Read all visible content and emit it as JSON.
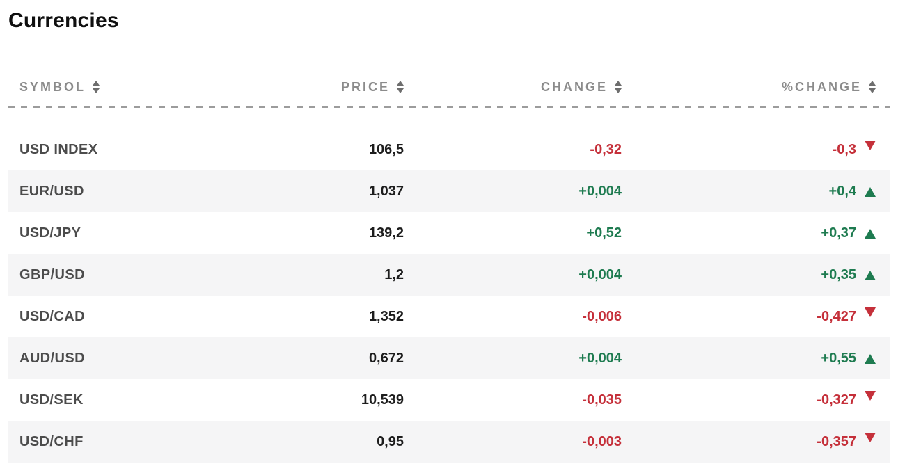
{
  "title": "Currencies",
  "colors": {
    "positive": "#1e7b50",
    "negative": "#c5303a",
    "header_text": "#8b8b8b",
    "symbol_text": "#4c4c4c",
    "price_text": "#1d1d1d",
    "row_alt_bg": "#f5f5f6",
    "dashed_divider": "#9c9c9c"
  },
  "table": {
    "columns": [
      {
        "label": "SYMBOL",
        "sort_icon": "sort-arrows"
      },
      {
        "label": "PRICE",
        "sort_icon": "sort-arrows"
      },
      {
        "label": "CHANGE",
        "sort_icon": "sort-arrows"
      },
      {
        "label": "%CHANGE",
        "sort_icon": "sort-arrows"
      }
    ],
    "rows": [
      {
        "symbol": "USD INDEX",
        "price": "106,5",
        "change": "-0,32",
        "pct_change": "-0,3",
        "direction": "down"
      },
      {
        "symbol": "EUR/USD",
        "price": "1,037",
        "change": "+0,004",
        "pct_change": "+0,4",
        "direction": "up"
      },
      {
        "symbol": "USD/JPY",
        "price": "139,2",
        "change": "+0,52",
        "pct_change": "+0,37",
        "direction": "up"
      },
      {
        "symbol": "GBP/USD",
        "price": "1,2",
        "change": "+0,004",
        "pct_change": "+0,35",
        "direction": "up"
      },
      {
        "symbol": "USD/CAD",
        "price": "1,352",
        "change": "-0,006",
        "pct_change": "-0,427",
        "direction": "down"
      },
      {
        "symbol": "AUD/USD",
        "price": "0,672",
        "change": "+0,004",
        "pct_change": "+0,55",
        "direction": "up"
      },
      {
        "symbol": "USD/SEK",
        "price": "10,539",
        "change": "-0,035",
        "pct_change": "-0,327",
        "direction": "down"
      },
      {
        "symbol": "USD/CHF",
        "price": "0,95",
        "change": "-0,003",
        "pct_change": "-0,357",
        "direction": "down"
      }
    ]
  },
  "chart_data": {
    "type": "table",
    "title": "Currencies",
    "columns": [
      "SYMBOL",
      "PRICE",
      "CHANGE",
      "%CHANGE"
    ],
    "rows": [
      {
        "symbol": "USD INDEX",
        "price": 106.5,
        "change": -0.32,
        "pct_change": -0.3,
        "direction": "down"
      },
      {
        "symbol": "EUR/USD",
        "price": 1.037,
        "change": 0.004,
        "pct_change": 0.4,
        "direction": "up"
      },
      {
        "symbol": "USD/JPY",
        "price": 139.2,
        "change": 0.52,
        "pct_change": 0.37,
        "direction": "up"
      },
      {
        "symbol": "GBP/USD",
        "price": 1.2,
        "change": 0.004,
        "pct_change": 0.35,
        "direction": "up"
      },
      {
        "symbol": "USD/CAD",
        "price": 1.352,
        "change": -0.006,
        "pct_change": -0.427,
        "direction": "down"
      },
      {
        "symbol": "AUD/USD",
        "price": 0.672,
        "change": 0.004,
        "pct_change": 0.55,
        "direction": "up"
      },
      {
        "symbol": "USD/SEK",
        "price": 10.539,
        "change": -0.035,
        "pct_change": -0.327,
        "direction": "down"
      },
      {
        "symbol": "USD/CHF",
        "price": 0.95,
        "change": -0.003,
        "pct_change": -0.357,
        "direction": "down"
      }
    ]
  }
}
